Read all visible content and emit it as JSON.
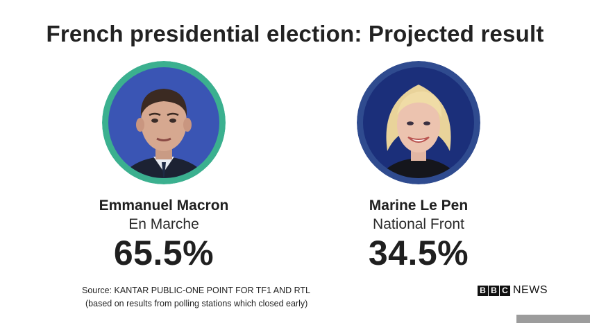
{
  "title": "French presidential election: Projected result",
  "candidates": [
    {
      "name": "Emmanuel Macron",
      "party": "En Marche",
      "percent": "65.5%",
      "ring_color": "#3bb08f",
      "photo_bg": "#3a55b4"
    },
    {
      "name": "Marine Le Pen",
      "party": "National Front",
      "percent": "34.5%",
      "ring_color": "#2f4b8f",
      "photo_bg": "#1b2f7a"
    }
  ],
  "source": {
    "line1": "Source: KANTAR PUBLIC-ONE POINT FOR TF1 AND RTL",
    "line2": "(based on results from polling stations which closed early)"
  },
  "brand": {
    "letters": [
      "B",
      "B",
      "C"
    ],
    "word": "NEWS"
  }
}
